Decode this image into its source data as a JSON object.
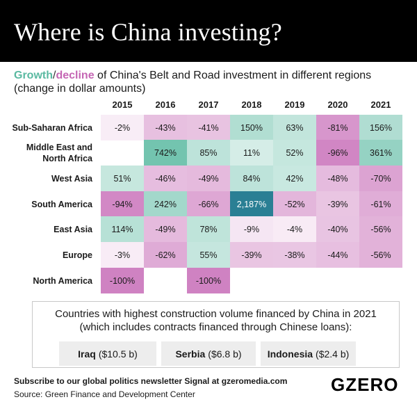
{
  "title": "Where is China investing?",
  "subtitle": {
    "growth": "Growth",
    "slash": "/",
    "decline": "decline",
    "rest": " of China's Belt and Road investment in different regions",
    "line2": "(change in dollar amounts)"
  },
  "colors": {
    "growth": "#5ab9a1",
    "decline": "#c566b4",
    "max_growth": "#2a7f94",
    "title_bg": "#000000"
  },
  "chart_data": {
    "type": "heatmap",
    "title": "Growth/decline of China's Belt and Road investment in different regions",
    "subtitle": "(change in dollar amounts)",
    "columns": [
      "2015",
      "2016",
      "2017",
      "2018",
      "2019",
      "2020",
      "2021"
    ],
    "rows": [
      {
        "label": [
          "Sub-Saharan Africa"
        ],
        "values": [
          -2,
          -43,
          -41,
          150,
          63,
          -81,
          156
        ],
        "text": [
          "-2%",
          "-43%",
          "-41%",
          "150%",
          "63%",
          "-81%",
          "156%"
        ]
      },
      {
        "label": [
          "Middle East and",
          "North Africa"
        ],
        "values": [
          null,
          742,
          85,
          11,
          52,
          -96,
          361
        ],
        "text": [
          "",
          "742%",
          "85%",
          "11%",
          "52%",
          "-96%",
          "361%"
        ]
      },
      {
        "label": [
          "West Asia"
        ],
        "values": [
          51,
          -46,
          -49,
          84,
          42,
          -48,
          -70
        ],
        "text": [
          "51%",
          "-46%",
          "-49%",
          "84%",
          "42%",
          "-48%",
          "-70%"
        ]
      },
      {
        "label": [
          "South America"
        ],
        "values": [
          -94,
          242,
          -66,
          2187,
          -52,
          -39,
          -61
        ],
        "text": [
          "-94%",
          "242%",
          "-66%",
          "2,187%",
          "-52%",
          "-39%",
          "-61%"
        ]
      },
      {
        "label": [
          "East Asia"
        ],
        "values": [
          114,
          -49,
          78,
          -9,
          -4,
          -40,
          -56
        ],
        "text": [
          "114%",
          "-49%",
          "78%",
          "-9%",
          "-4%",
          "-40%",
          "-56%"
        ]
      },
      {
        "label": [
          "Europe"
        ],
        "values": [
          -3,
          -62,
          55,
          -39,
          -38,
          -44,
          -56
        ],
        "text": [
          "-3%",
          "-62%",
          "55%",
          "-39%",
          "-38%",
          "-44%",
          "-56%"
        ]
      },
      {
        "label": [
          "North America"
        ],
        "values": [
          -100,
          null,
          -100,
          null,
          null,
          null,
          null
        ],
        "text": [
          "-100%",
          "",
          "-100%",
          "",
          "",
          "",
          ""
        ]
      }
    ]
  },
  "countries": {
    "title_line1": "Countries with highest construction volume financed by China in 2021",
    "title_line2": "(which includes contracts financed through Chinese loans):",
    "items": [
      {
        "name": "Iraq",
        "amount": "($10.5 b)"
      },
      {
        "name": "Serbia",
        "amount": "($6.8 b)"
      },
      {
        "name": "Indonesia",
        "amount": "($2.4 b)"
      }
    ]
  },
  "footer": {
    "subscribe": "Subscribe to our global politics newsletter Signal at gzeromedia.com",
    "source": "Source: Green Finance and Development Center"
  },
  "logo": "GZERO"
}
